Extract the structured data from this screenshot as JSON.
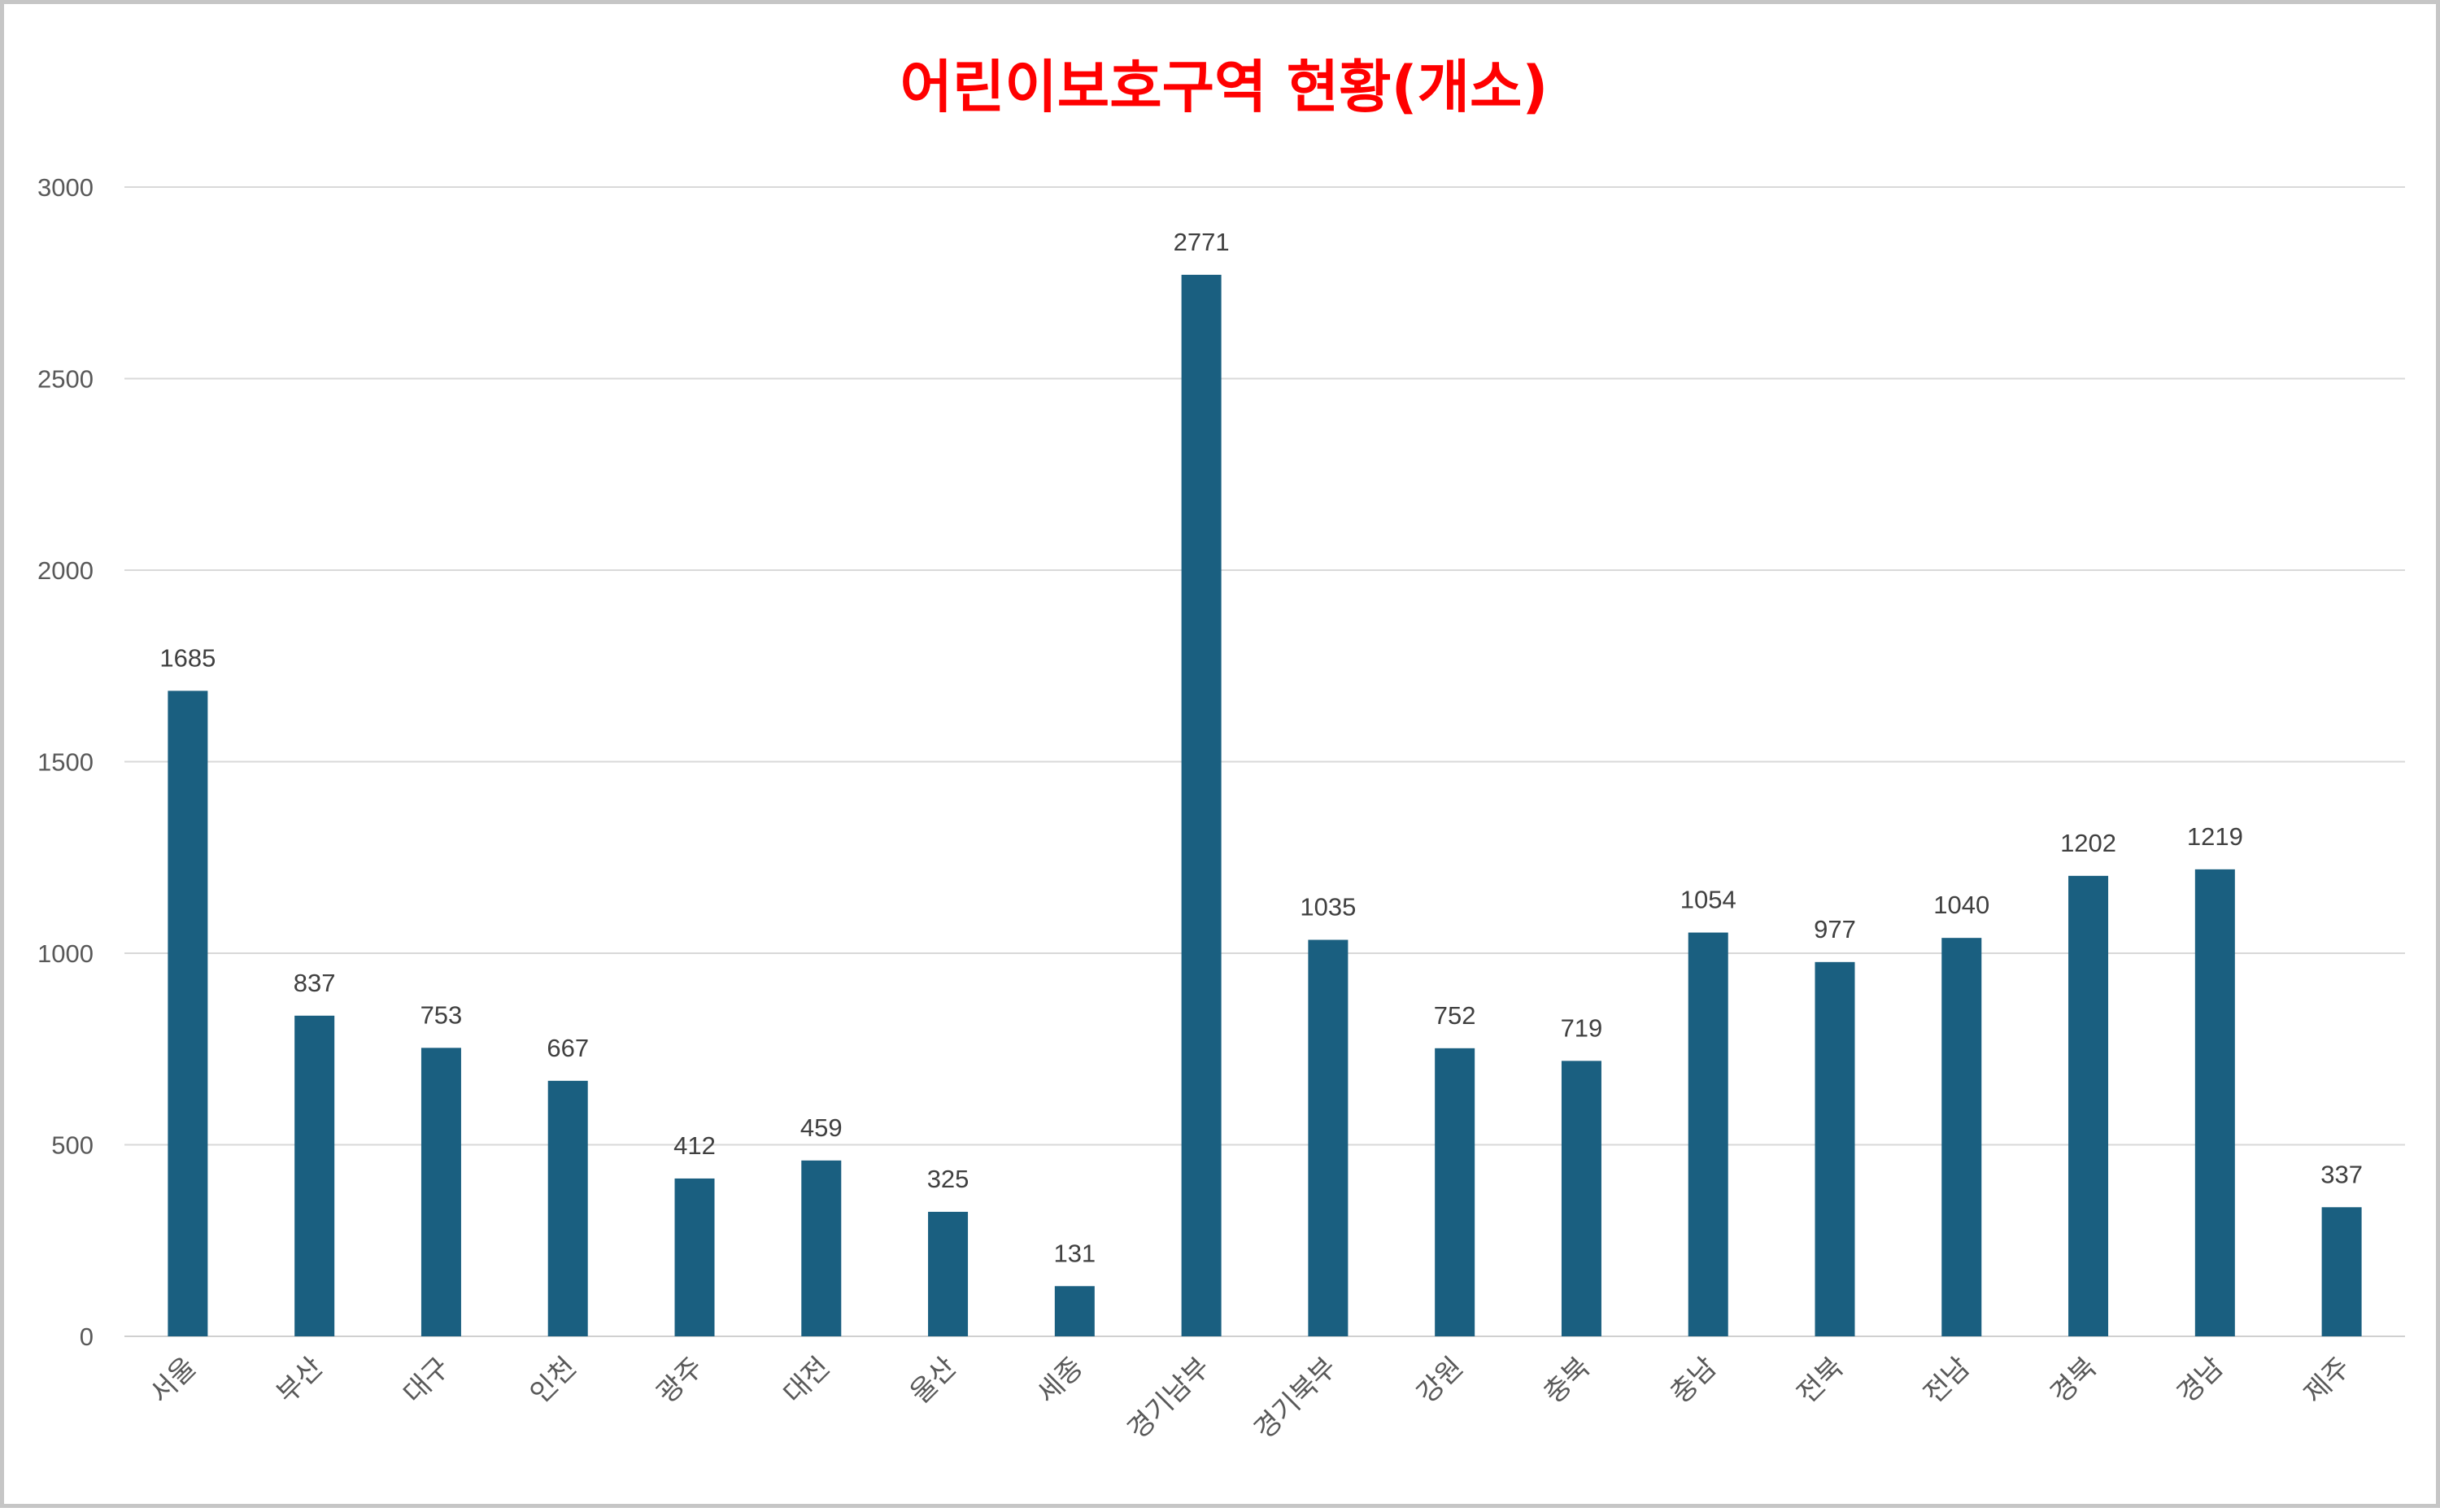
{
  "chart_data": {
    "type": "bar",
    "title": "어린이보호구역 현황(개소)",
    "xlabel": "",
    "ylabel": "",
    "categories": [
      "서울",
      "부산",
      "대구",
      "인천",
      "광주",
      "대전",
      "울산",
      "세종",
      "경기남부",
      "경기북부",
      "강원",
      "충북",
      "충남",
      "전북",
      "전남",
      "경북",
      "경남",
      "제주"
    ],
    "series": [
      {
        "values": [
          1685,
          837,
          753,
          667,
          412,
          459,
          325,
          131,
          2771,
          1035,
          752,
          719,
          1054,
          977,
          1040,
          1202,
          1219,
          337
        ]
      }
    ],
    "ylim": [
      0,
      3000
    ],
    "yticks": [
      "0",
      "500",
      "1000",
      "1500",
      "2000",
      "2500",
      "3000"
    ],
    "grid": true,
    "legend": "none",
    "bar_color": "#1a5f80",
    "title_color": "#ff0000"
  }
}
